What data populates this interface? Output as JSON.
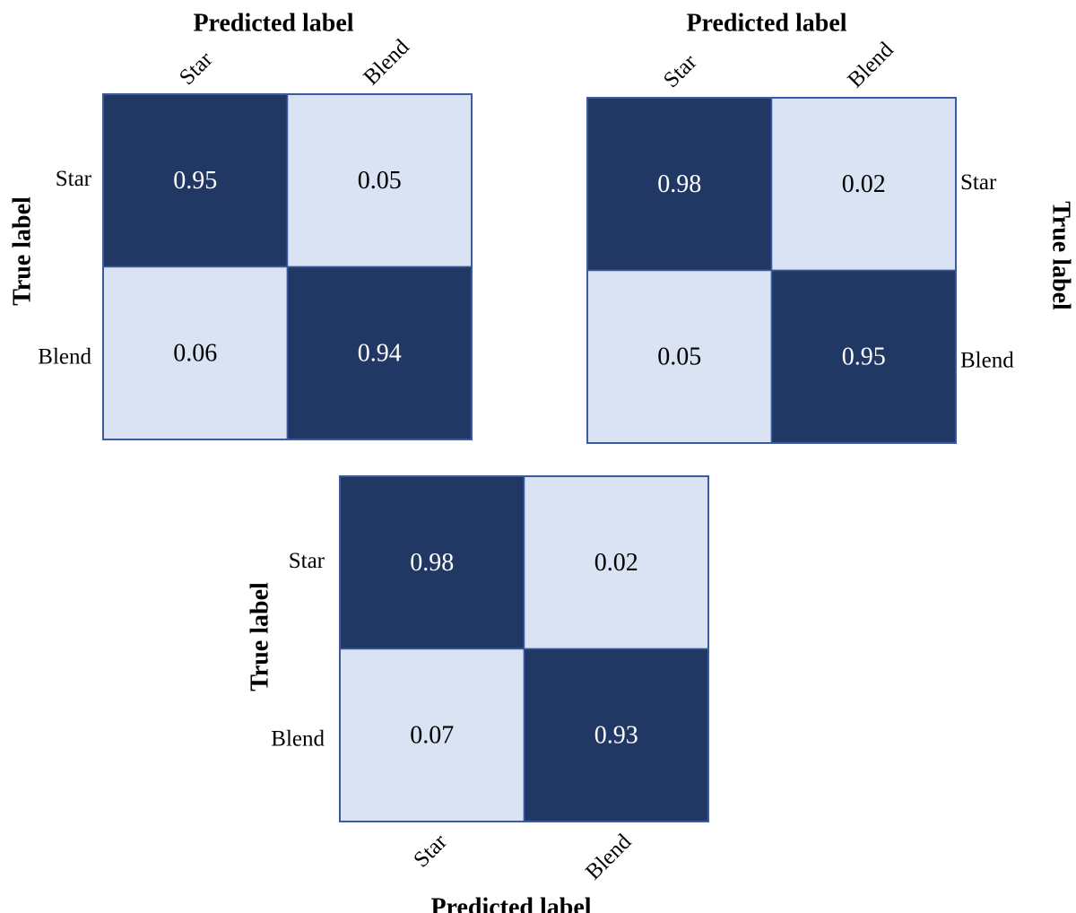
{
  "chart_data": [
    {
      "type": "heatmap",
      "xlabel": "Predicted label",
      "ylabel": "True label",
      "x_categories": [
        "Star",
        "Blend"
      ],
      "y_categories": [
        "Star",
        "Blend"
      ],
      "values": [
        [
          0.95,
          0.05
        ],
        [
          0.06,
          0.94
        ]
      ],
      "xlabel_position": "top",
      "ylabel_position": "left"
    },
    {
      "type": "heatmap",
      "xlabel": "Predicted label",
      "ylabel": "True label",
      "x_categories": [
        "Star",
        "Blend"
      ],
      "y_categories": [
        "Star",
        "Blend"
      ],
      "values": [
        [
          0.98,
          0.02
        ],
        [
          0.05,
          0.95
        ]
      ],
      "xlabel_position": "top",
      "ylabel_position": "right"
    },
    {
      "type": "heatmap",
      "xlabel": "Predicted label",
      "ylabel": "True label",
      "x_categories": [
        "Star",
        "Blend"
      ],
      "y_categories": [
        "Star",
        "Blend"
      ],
      "values": [
        [
          0.98,
          0.02
        ],
        [
          0.07,
          0.93
        ]
      ],
      "xlabel_position": "bottom",
      "ylabel_position": "left"
    }
  ],
  "colors": {
    "high": "#223864",
    "low": "#d9e3f3",
    "border": "#3b5aa0",
    "text_on_high": "#ffffff",
    "text_on_low": "#000000"
  }
}
